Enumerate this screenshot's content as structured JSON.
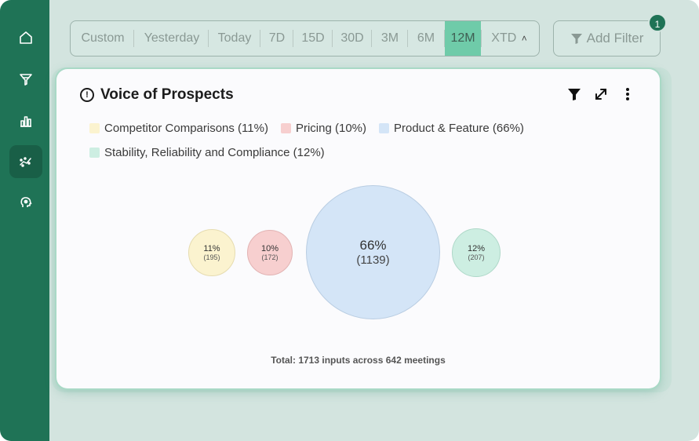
{
  "sidebar": {
    "items": [
      {
        "name": "home-icon"
      },
      {
        "name": "funnel-icon"
      },
      {
        "name": "bar-chart-icon"
      },
      {
        "name": "scatter-icon",
        "active": true
      },
      {
        "name": "brain-icon"
      }
    ]
  },
  "date_range": {
    "options": [
      "Custom",
      "Yesterday",
      "Today",
      "7D",
      "15D",
      "30D",
      "3M",
      "6M",
      "12M",
      "XTD"
    ],
    "selected": "12M"
  },
  "filter": {
    "label": "Add Filter",
    "count": "1"
  },
  "card": {
    "title": "Voice of Prospects",
    "legend": [
      {
        "label": "Competitor Comparisons (11%)",
        "color": "#fbf3cf"
      },
      {
        "label": "Pricing (10%)",
        "color": "#f7cfcf"
      },
      {
        "label": "Product & Feature (66%)",
        "color": "#d4e5f7"
      },
      {
        "label": "Stability, Reliability and Compliance (12%)",
        "color": "#cdeee2"
      }
    ],
    "bubbles": [
      {
        "pct": "11%",
        "count": "(195)",
        "fill": "#fbf3cf",
        "stroke": "#e6dcb0"
      },
      {
        "pct": "10%",
        "count": "(172)",
        "fill": "#f7cfcf",
        "stroke": "#e2b3b3"
      },
      {
        "pct": "66%",
        "count": "(1139)",
        "fill": "#d4e5f7",
        "stroke": "#b9cde2"
      },
      {
        "pct": "12%",
        "count": "(207)",
        "fill": "#cdeee2",
        "stroke": "#aed8c8"
      }
    ],
    "total": "Total: 1713 inputs across 642 meetings"
  }
}
